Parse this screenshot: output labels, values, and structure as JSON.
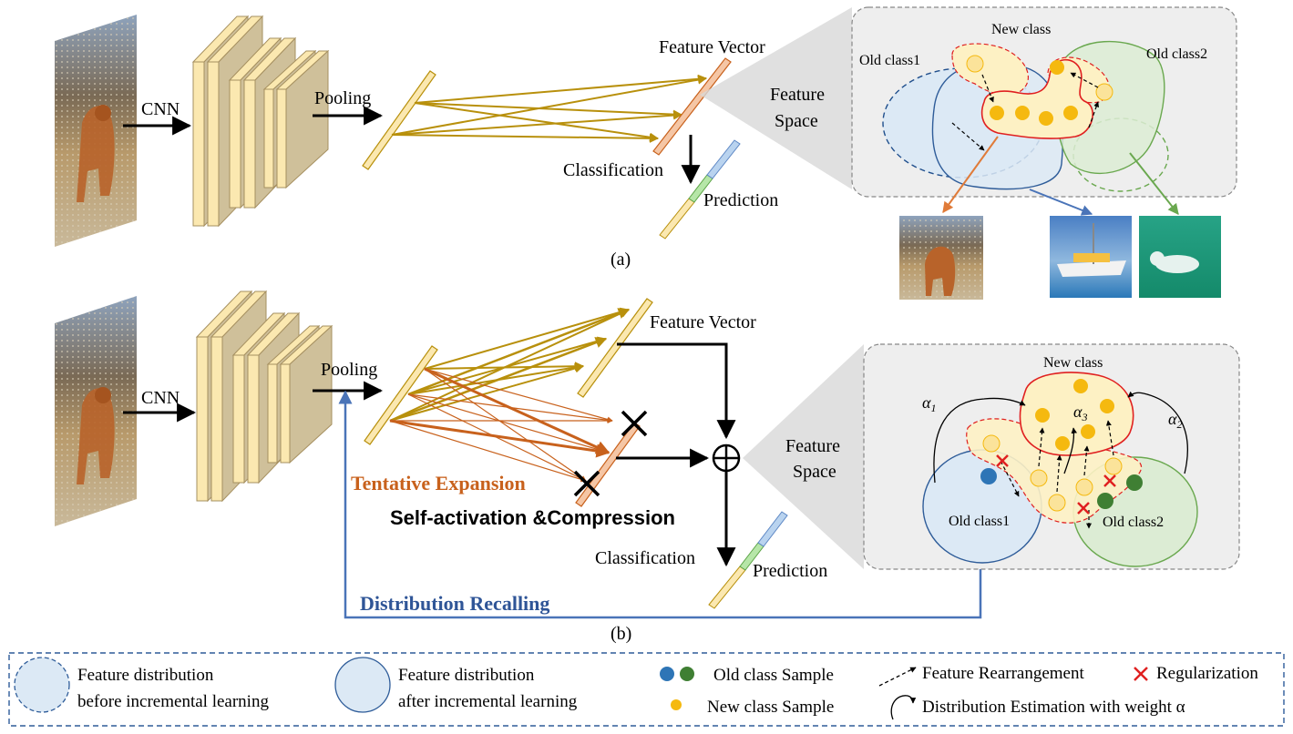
{
  "panel_a": {
    "cnn_label": "CNN",
    "pooling_label": "Pooling",
    "feature_vector_label": "Feature Vector",
    "classification_label": "Classification",
    "prediction_label": "Prediction",
    "feature_space_line1": "Feature",
    "feature_space_line2": "Space",
    "new_class_label": "New class",
    "old_class1_label": "Old class1",
    "old_class2_label": "Old class2",
    "caption": "(a)"
  },
  "panel_b": {
    "cnn_label": "CNN",
    "pooling_label": "Pooling",
    "feature_vector_label": "Feature Vector",
    "tentative_expansion_label": "Tentative Expansion",
    "self_activation_label": "Self-activation &Compression",
    "classification_label": "Classification",
    "prediction_label": "Prediction",
    "distribution_recalling_label": "Distribution Recalling",
    "feature_space_line1": "Feature",
    "feature_space_line2": "Space",
    "new_class_label": "New class",
    "old_class1_label": "Old class1",
    "old_class2_label": "Old class2",
    "alpha1": "α1",
    "alpha2": "α2",
    "alpha3": "α3",
    "caption": "(b)"
  },
  "legend": {
    "dist_before_line1": "Feature distribution",
    "dist_before_line2": "before incremental learning",
    "dist_after_line1": "Feature distribution",
    "dist_after_line2": "after incremental learning",
    "old_class_sample": "Old class Sample",
    "new_class_sample": "New class Sample",
    "feature_rearrangement": "Feature Rearrangement",
    "regularization": "Regularization",
    "distribution_estimation": "Distribution Estimation with weight α"
  },
  "colors": {
    "conv_fill": "#fbe8b0",
    "conv_side": "#cfc09a",
    "gold": "#b8900c",
    "orange": "#c8611c",
    "blue_arrow": "#4a74b8",
    "old_class1_fill": "#dce9f5",
    "old_class2_fill": "#dcecd4",
    "new_class_fill": "#fdf1c4",
    "sample_yellow": "#f5b90f",
    "sample_blue": "#2e75b6",
    "sample_green": "#3f7f33",
    "reg_red": "#e02020"
  },
  "icons": [
    "dog-photo",
    "boat-photo",
    "beluga-photo",
    "oplus-icon",
    "cross-icon"
  ]
}
